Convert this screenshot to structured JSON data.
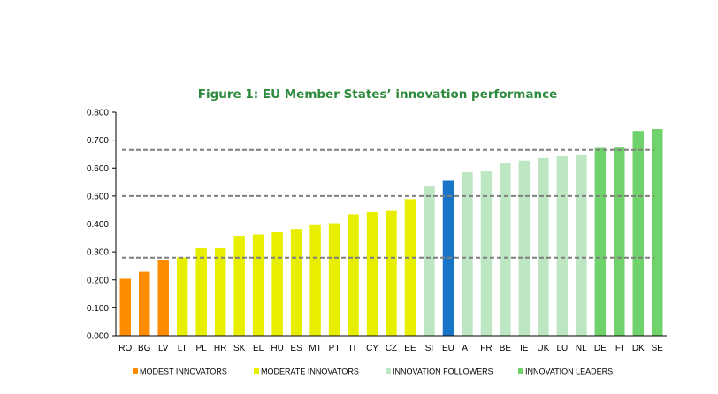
{
  "chart_data": {
    "type": "bar",
    "title": "Figure 1: EU Member States’ innovation performance",
    "title_color": "#2e8b3e",
    "categories": [
      "RO",
      "BG",
      "LV",
      "LT",
      "PL",
      "HR",
      "SK",
      "EL",
      "HU",
      "ES",
      "MT",
      "PT",
      "IT",
      "CY",
      "CZ",
      "EE",
      "SI",
      "EU",
      "AT",
      "FR",
      "BE",
      "IE",
      "UK",
      "LU",
      "NL",
      "DE",
      "FI",
      "DK",
      "SE"
    ],
    "values": [
      0.204,
      0.229,
      0.272,
      0.28,
      0.313,
      0.313,
      0.357,
      0.362,
      0.37,
      0.382,
      0.396,
      0.403,
      0.435,
      0.443,
      0.447,
      0.489,
      0.534,
      0.555,
      0.585,
      0.588,
      0.619,
      0.627,
      0.636,
      0.642,
      0.646,
      0.675,
      0.676,
      0.733,
      0.74
    ],
    "groups": [
      "modest",
      "modest",
      "modest",
      "moderate",
      "moderate",
      "moderate",
      "moderate",
      "moderate",
      "moderate",
      "moderate",
      "moderate",
      "moderate",
      "moderate",
      "moderate",
      "moderate",
      "moderate",
      "follower",
      "eu",
      "follower",
      "follower",
      "follower",
      "follower",
      "follower",
      "follower",
      "follower",
      "leader",
      "leader",
      "leader",
      "leader"
    ],
    "group_colors": {
      "modest": "#ff8c00",
      "moderate": "#e8ee00",
      "follower": "#bde6c2",
      "eu": "#1874c8",
      "leader": "#6fd26a"
    },
    "ylim": [
      0,
      0.8
    ],
    "yticks": [
      "0.000",
      "0.100",
      "0.200",
      "0.300",
      "0.400",
      "0.500",
      "0.600",
      "0.700",
      "0.800"
    ],
    "ytick_values": [
      0,
      0.1,
      0.2,
      0.3,
      0.4,
      0.5,
      0.6,
      0.7,
      0.8
    ],
    "reference_lines": [
      0.279,
      0.5,
      0.665
    ],
    "reference_line_color": "#7f7f7f",
    "grid": false,
    "legend": {
      "placement": "bottom",
      "entries": [
        {
          "label": "MODEST INNOVATORS",
          "group": "modest"
        },
        {
          "label": "MODERATE INNOVATORS",
          "group": "moderate"
        },
        {
          "label": "INNOVATION FOLLOWERS",
          "group": "follower"
        },
        {
          "label": "INNOVATION LEADERS",
          "group": "leader"
        }
      ]
    }
  }
}
